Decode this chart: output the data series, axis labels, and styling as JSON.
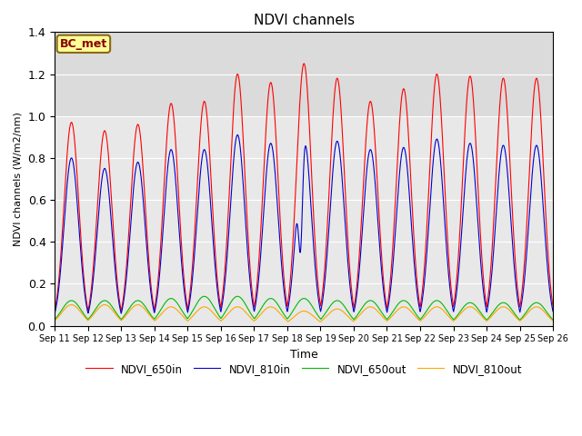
{
  "title": "NDVI channels",
  "xlabel": "Time",
  "ylabel": "NDVI channels (W/m2/nm)",
  "ylim": [
    0,
    1.4
  ],
  "annotation_text": "BC_met",
  "annotation_color": "#8B0000",
  "annotation_bg": "#FFFF99",
  "plot_bg_color": "#E8E8E8",
  "fig_bg_color": "#FFFFFF",
  "colors": {
    "NDVI_650in": "#FF0000",
    "NDVI_810in": "#0000CC",
    "NDVI_650out": "#00BB00",
    "NDVI_810out": "#FFA500"
  },
  "legend_labels": [
    "NDVI_650in",
    "NDVI_810in",
    "NDVI_650out",
    "NDVI_810out"
  ],
  "tick_labels": [
    "Sep 11",
    "Sep 12",
    "Sep 13",
    "Sep 14",
    "Sep 15",
    "Sep 16",
    "Sep 17",
    "Sep 18",
    "Sep 19",
    "Sep 20",
    "Sep 21",
    "Sep 22",
    "Sep 23",
    "Sep 24",
    "Sep 25",
    "Sep 26"
  ],
  "spike_heights_650in": [
    0.97,
    0.93,
    0.96,
    1.06,
    1.07,
    1.2,
    1.16,
    1.25,
    1.18,
    1.07,
    1.13,
    1.2,
    1.19,
    1.18,
    1.18
  ],
  "spike_heights_810in": [
    0.8,
    0.75,
    0.78,
    0.84,
    0.84,
    0.91,
    0.87,
    0.9,
    0.88,
    0.84,
    0.85,
    0.89,
    0.87,
    0.86,
    0.86
  ],
  "spike_heights_650out": [
    0.12,
    0.12,
    0.12,
    0.13,
    0.14,
    0.14,
    0.13,
    0.13,
    0.12,
    0.12,
    0.12,
    0.12,
    0.11,
    0.11,
    0.11
  ],
  "spike_heights_810out": [
    0.1,
    0.1,
    0.1,
    0.09,
    0.09,
    0.09,
    0.09,
    0.07,
    0.08,
    0.09,
    0.09,
    0.09,
    0.09,
    0.09,
    0.09
  ],
  "spike_810in_day8_dip": 0.47,
  "figsize": [
    6.4,
    4.8
  ],
  "dpi": 100
}
